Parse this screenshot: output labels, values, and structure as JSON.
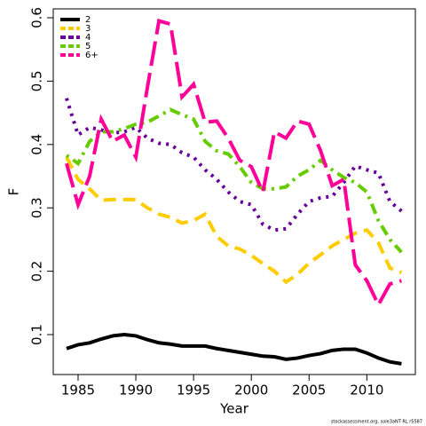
{
  "chart_data": {
    "type": "line",
    "x_label": "Year",
    "y_label": "F",
    "footnote": "stockassessment.org, sole3aNT RL r5587",
    "x": [
      1984,
      1985,
      1986,
      1987,
      1988,
      1989,
      1990,
      1991,
      1992,
      1993,
      1994,
      1995,
      1996,
      1997,
      1998,
      1999,
      2000,
      2001,
      2002,
      2003,
      2004,
      2005,
      2006,
      2007,
      2008,
      2009,
      2010,
      2011,
      2012,
      2013
    ],
    "series": [
      {
        "name": "2",
        "color": "#000000",
        "dash": "none",
        "values": [
          0.078,
          0.084,
          0.087,
          0.093,
          0.098,
          0.1,
          0.098,
          0.092,
          0.087,
          0.085,
          0.082,
          0.082,
          0.082,
          0.078,
          0.075,
          0.072,
          0.069,
          0.066,
          0.065,
          0.061,
          0.063,
          0.067,
          0.07,
          0.075,
          0.077,
          0.077,
          0.071,
          0.063,
          0.057,
          0.054
        ]
      },
      {
        "name": "3",
        "color": "#ffcc00",
        "dash": "14 8",
        "values": [
          0.38,
          0.345,
          0.33,
          0.312,
          0.313,
          0.313,
          0.313,
          0.3,
          0.29,
          0.285,
          0.276,
          0.28,
          0.29,
          0.255,
          0.24,
          0.235,
          0.225,
          0.212,
          0.2,
          0.183,
          0.195,
          0.213,
          0.226,
          0.24,
          0.25,
          0.26,
          0.265,
          0.245,
          0.205,
          0.198
        ]
      },
      {
        "name": "4",
        "color": "#660099",
        "dash": "3 6",
        "values": [
          0.473,
          0.415,
          0.427,
          0.423,
          0.418,
          0.42,
          0.427,
          0.41,
          0.402,
          0.4,
          0.387,
          0.38,
          0.36,
          0.345,
          0.325,
          0.31,
          0.305,
          0.274,
          0.265,
          0.267,
          0.29,
          0.31,
          0.316,
          0.318,
          0.34,
          0.366,
          0.36,
          0.355,
          0.31,
          0.295
        ]
      },
      {
        "name": "5",
        "color": "#66cc00",
        "dash": "3 6 12 6",
        "values": [
          0.383,
          0.37,
          0.405,
          0.42,
          0.42,
          0.425,
          0.432,
          0.435,
          0.445,
          0.455,
          0.447,
          0.44,
          0.405,
          0.39,
          0.385,
          0.365,
          0.34,
          0.33,
          0.33,
          0.333,
          0.35,
          0.36,
          0.375,
          0.36,
          0.348,
          0.34,
          0.325,
          0.28,
          0.25,
          0.23
        ]
      },
      {
        "name": "6+",
        "color": "#ff0099",
        "dash": "28 8",
        "values": [
          0.37,
          0.305,
          0.35,
          0.44,
          0.405,
          0.415,
          0.38,
          0.49,
          0.595,
          0.59,
          0.475,
          0.495,
          0.435,
          0.437,
          0.41,
          0.375,
          0.365,
          0.325,
          0.42,
          0.41,
          0.437,
          0.432,
          0.39,
          0.335,
          0.345,
          0.21,
          0.185,
          0.147,
          0.18,
          0.185
        ]
      }
    ],
    "xlim": [
      1982.85,
      2014.2
    ],
    "ylim": [
      0.037,
      0.614
    ],
    "xticks": [
      1985,
      1990,
      1995,
      2000,
      2005,
      2010
    ],
    "yticks": [
      0.1,
      0.2,
      0.3,
      0.4,
      0.5,
      0.6
    ],
    "legend": "top-left",
    "grid": false
  }
}
